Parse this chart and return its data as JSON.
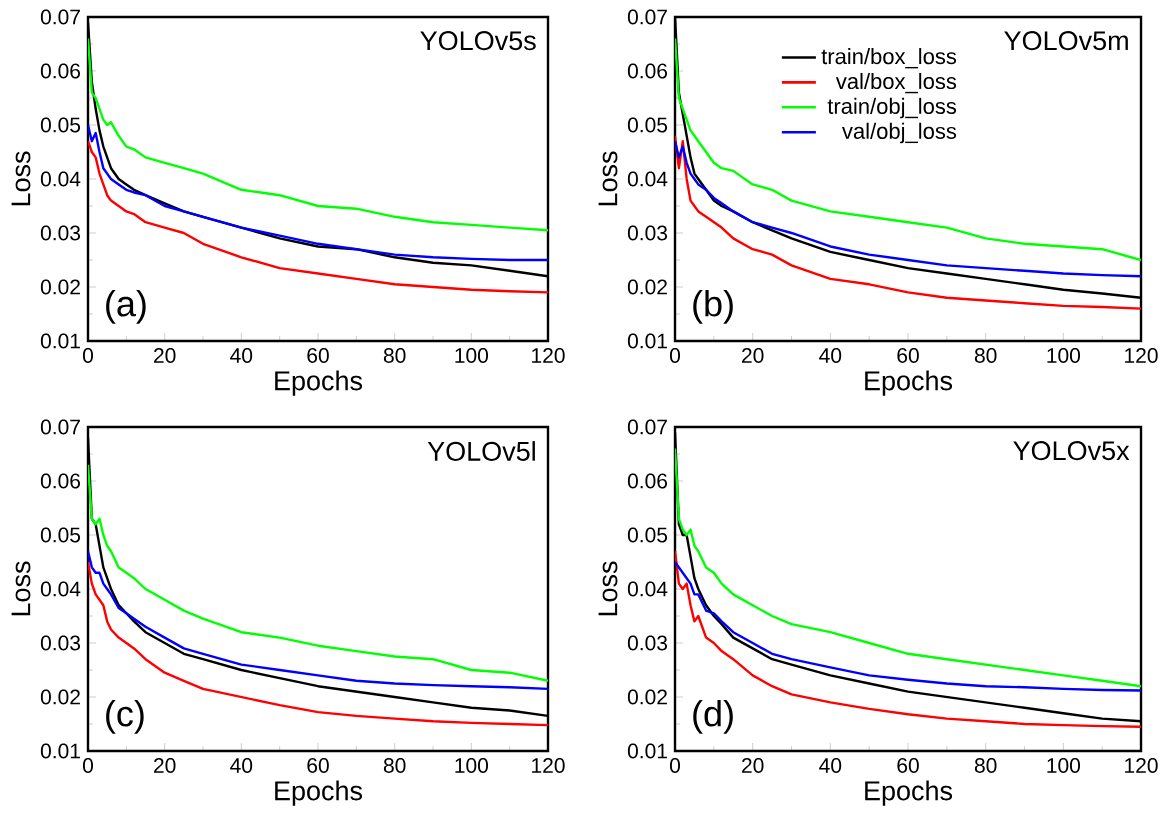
{
  "chart_data": [
    {
      "type": "line",
      "xlabel": "Epochs",
      "ylabel": "Loss",
      "annotations": [
        "(a)",
        "YOLOv5s"
      ],
      "x": [
        0,
        1,
        2,
        3,
        4,
        5,
        6,
        8,
        10,
        12,
        15,
        20,
        25,
        30,
        40,
        50,
        60,
        70,
        80,
        90,
        100,
        110,
        120
      ],
      "xlim": [
        0,
        120
      ],
      "xticks": [
        0,
        20,
        40,
        60,
        80,
        100,
        120
      ],
      "ylim": [
        0.01,
        0.07
      ],
      "yticks": [
        0.01,
        0.02,
        0.03,
        0.04,
        0.05,
        0.06,
        0.07
      ],
      "series": [
        {
          "color": "#000000",
          "values": [
            0.069,
            0.058,
            0.053,
            0.049,
            0.046,
            0.044,
            0.042,
            0.04,
            0.039,
            0.038,
            0.037,
            0.0355,
            0.034,
            0.033,
            0.031,
            0.029,
            0.0275,
            0.027,
            0.0255,
            0.0245,
            0.024,
            0.023,
            0.022
          ]
        },
        {
          "color": "#ff0000",
          "values": [
            0.047,
            0.045,
            0.044,
            0.041,
            0.039,
            0.037,
            0.036,
            0.035,
            0.034,
            0.0335,
            0.032,
            0.031,
            0.03,
            0.028,
            0.0255,
            0.0235,
            0.0225,
            0.0215,
            0.0205,
            0.02,
            0.0195,
            0.0192,
            0.019
          ]
        },
        {
          "color": "#00ff00",
          "values": [
            0.066,
            0.056,
            0.055,
            0.053,
            0.051,
            0.05,
            0.0505,
            0.048,
            0.046,
            0.0455,
            0.044,
            0.043,
            0.042,
            0.041,
            0.038,
            0.037,
            0.035,
            0.0345,
            0.033,
            0.032,
            0.0315,
            0.031,
            0.0305
          ]
        },
        {
          "color": "#0000ff",
          "values": [
            0.05,
            0.047,
            0.0485,
            0.045,
            0.042,
            0.041,
            0.04,
            0.039,
            0.038,
            0.0375,
            0.037,
            0.035,
            0.034,
            0.033,
            0.031,
            0.0295,
            0.028,
            0.027,
            0.026,
            0.0255,
            0.0252,
            0.025,
            0.025
          ]
        }
      ]
    },
    {
      "type": "line",
      "xlabel": "Epochs",
      "ylabel": "Loss",
      "annotations": [
        "(b)",
        "YOLOv5m"
      ],
      "legend": "top",
      "x": [
        0,
        1,
        2,
        3,
        4,
        5,
        6,
        8,
        10,
        12,
        15,
        20,
        25,
        30,
        40,
        50,
        60,
        70,
        80,
        90,
        100,
        110,
        120
      ],
      "xlim": [
        0,
        120
      ],
      "xticks": [
        0,
        20,
        40,
        60,
        80,
        100,
        120
      ],
      "ylim": [
        0.01,
        0.07
      ],
      "yticks": [
        0.01,
        0.02,
        0.03,
        0.04,
        0.05,
        0.06,
        0.07
      ],
      "series": [
        {
          "name": "train/box_loss",
          "color": "#000000",
          "values": [
            0.07,
            0.056,
            0.052,
            0.048,
            0.044,
            0.041,
            0.04,
            0.038,
            0.036,
            0.035,
            0.034,
            0.032,
            0.0305,
            0.029,
            0.0265,
            0.025,
            0.0235,
            0.0225,
            0.0215,
            0.0205,
            0.0195,
            0.0188,
            0.018
          ]
        },
        {
          "name": "val/box_loss",
          "color": "#ff0000",
          "values": [
            0.048,
            0.042,
            0.047,
            0.04,
            0.036,
            0.035,
            0.034,
            0.033,
            0.032,
            0.031,
            0.029,
            0.027,
            0.026,
            0.024,
            0.0215,
            0.0205,
            0.019,
            0.018,
            0.0175,
            0.017,
            0.0165,
            0.0163,
            0.016
          ]
        },
        {
          "name": "train/obj_loss",
          "color": "#00ff00",
          "values": [
            0.066,
            0.055,
            0.053,
            0.051,
            0.049,
            0.048,
            0.047,
            0.045,
            0.043,
            0.042,
            0.0415,
            0.039,
            0.038,
            0.036,
            0.034,
            0.033,
            0.032,
            0.031,
            0.029,
            0.028,
            0.0275,
            0.027,
            0.025
          ]
        },
        {
          "name": "val/obj_loss",
          "color": "#0000ff",
          "values": [
            0.047,
            0.044,
            0.046,
            0.043,
            0.041,
            0.04,
            0.039,
            0.038,
            0.0365,
            0.0355,
            0.034,
            0.032,
            0.031,
            0.03,
            0.0275,
            0.026,
            0.025,
            0.024,
            0.0235,
            0.023,
            0.0225,
            0.0222,
            0.022
          ]
        }
      ]
    },
    {
      "type": "line",
      "xlabel": "Epochs",
      "ylabel": "Loss",
      "annotations": [
        "(c)",
        "YOLOv5l"
      ],
      "x": [
        0,
        1,
        2,
        3,
        4,
        5,
        6,
        8,
        10,
        12,
        15,
        20,
        25,
        30,
        40,
        50,
        60,
        70,
        80,
        90,
        100,
        110,
        120
      ],
      "xlim": [
        0,
        120
      ],
      "xticks": [
        0,
        20,
        40,
        60,
        80,
        100,
        120
      ],
      "ylim": [
        0.01,
        0.07
      ],
      "yticks": [
        0.01,
        0.02,
        0.03,
        0.04,
        0.05,
        0.06,
        0.07
      ],
      "series": [
        {
          "color": "#000000",
          "values": [
            0.068,
            0.053,
            0.052,
            0.048,
            0.044,
            0.042,
            0.04,
            0.037,
            0.0355,
            0.034,
            0.032,
            0.03,
            0.028,
            0.027,
            0.025,
            0.0235,
            0.022,
            0.021,
            0.02,
            0.019,
            0.018,
            0.0175,
            0.0165
          ]
        },
        {
          "color": "#ff0000",
          "values": [
            0.045,
            0.041,
            0.039,
            0.038,
            0.037,
            0.034,
            0.0325,
            0.031,
            0.03,
            0.029,
            0.027,
            0.0245,
            0.023,
            0.0215,
            0.02,
            0.0185,
            0.0172,
            0.0165,
            0.016,
            0.0155,
            0.0152,
            0.015,
            0.0148
          ]
        },
        {
          "color": "#00ff00",
          "values": [
            0.063,
            0.053,
            0.052,
            0.053,
            0.05,
            0.048,
            0.047,
            0.044,
            0.043,
            0.042,
            0.04,
            0.038,
            0.036,
            0.0345,
            0.032,
            0.031,
            0.0295,
            0.0285,
            0.0275,
            0.027,
            0.025,
            0.0245,
            0.023
          ]
        },
        {
          "color": "#0000ff",
          "values": [
            0.047,
            0.044,
            0.043,
            0.043,
            0.041,
            0.04,
            0.039,
            0.0365,
            0.0355,
            0.0345,
            0.033,
            0.031,
            0.029,
            0.028,
            0.026,
            0.025,
            0.024,
            0.023,
            0.0225,
            0.0222,
            0.022,
            0.0218,
            0.0215
          ]
        }
      ]
    },
    {
      "type": "line",
      "xlabel": "Epochs",
      "ylabel": "Loss",
      "annotations": [
        "(d)",
        "YOLOv5x"
      ],
      "x": [
        0,
        1,
        2,
        3,
        4,
        5,
        6,
        8,
        10,
        12,
        15,
        20,
        25,
        30,
        40,
        50,
        60,
        70,
        80,
        90,
        100,
        110,
        120
      ],
      "xlim": [
        0,
        120
      ],
      "xticks": [
        0,
        20,
        40,
        60,
        80,
        100,
        120
      ],
      "ylim": [
        0.01,
        0.07
      ],
      "yticks": [
        0.01,
        0.02,
        0.03,
        0.04,
        0.05,
        0.06,
        0.07
      ],
      "series": [
        {
          "color": "#000000",
          "values": [
            0.069,
            0.052,
            0.05,
            0.05,
            0.046,
            0.042,
            0.04,
            0.037,
            0.035,
            0.0335,
            0.031,
            0.029,
            0.027,
            0.026,
            0.024,
            0.0225,
            0.021,
            0.02,
            0.019,
            0.018,
            0.017,
            0.016,
            0.0155
          ]
        },
        {
          "color": "#ff0000",
          "values": [
            0.047,
            0.041,
            0.04,
            0.041,
            0.037,
            0.034,
            0.035,
            0.031,
            0.03,
            0.0285,
            0.027,
            0.024,
            0.022,
            0.0205,
            0.019,
            0.0178,
            0.0168,
            0.016,
            0.0155,
            0.015,
            0.0148,
            0.0146,
            0.0145
          ]
        },
        {
          "color": "#00ff00",
          "values": [
            0.066,
            0.053,
            0.051,
            0.05,
            0.051,
            0.048,
            0.047,
            0.044,
            0.043,
            0.041,
            0.039,
            0.037,
            0.035,
            0.0335,
            0.032,
            0.03,
            0.028,
            0.027,
            0.026,
            0.025,
            0.024,
            0.023,
            0.022
          ]
        },
        {
          "color": "#0000ff",
          "values": [
            0.045,
            0.044,
            0.043,
            0.042,
            0.041,
            0.039,
            0.039,
            0.036,
            0.0355,
            0.034,
            0.032,
            0.03,
            0.028,
            0.027,
            0.0255,
            0.024,
            0.0232,
            0.0225,
            0.022,
            0.0218,
            0.0215,
            0.0213,
            0.0212
          ]
        }
      ]
    }
  ]
}
